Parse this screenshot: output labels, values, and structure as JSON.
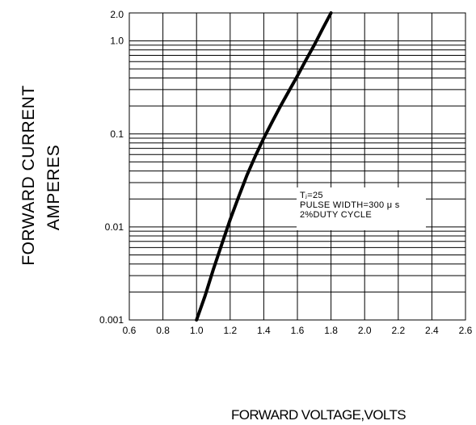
{
  "chart_data": {
    "type": "line",
    "xlabel": "FORWARD VOLTAGE,VOLTS",
    "ylabel": [
      "FORWARD CURRENT",
      "AMPERES"
    ],
    "x_ticks": [
      "0.6",
      "0.8",
      "1.0",
      "1.2",
      "1.4",
      "1.6",
      "1.8",
      "2.0",
      "2.2",
      "2.4",
      "2.6"
    ],
    "y_ticks": [
      {
        "value": 2.0,
        "label": "2.0"
      },
      {
        "value": 1.0,
        "label": "1.0"
      },
      {
        "value": 0.1,
        "label": "0.1"
      },
      {
        "value": 0.01,
        "label": "0.01"
      },
      {
        "value": 0.001,
        "label": "0.001"
      }
    ],
    "xlim": [
      0.6,
      2.6
    ],
    "ylim": [
      0.001,
      2.0
    ],
    "y_scale": "log",
    "grid": true,
    "series": [
      {
        "x": [
          1.0,
          1.05,
          1.1,
          1.15,
          1.2,
          1.25,
          1.3,
          1.35,
          1.4,
          1.45,
          1.5,
          1.55,
          1.6,
          1.65,
          1.7,
          1.75,
          1.8
        ],
        "y": [
          0.001,
          0.0018,
          0.0035,
          0.0065,
          0.012,
          0.021,
          0.036,
          0.058,
          0.09,
          0.135,
          0.2,
          0.29,
          0.42,
          0.62,
          0.9,
          1.35,
          2.0
        ]
      }
    ],
    "annotation": {
      "lines": [
        "Tⱼ=25",
        "PULSE WIDTH=300 μ s",
        "2%DUTY CYCLE"
      ]
    }
  }
}
